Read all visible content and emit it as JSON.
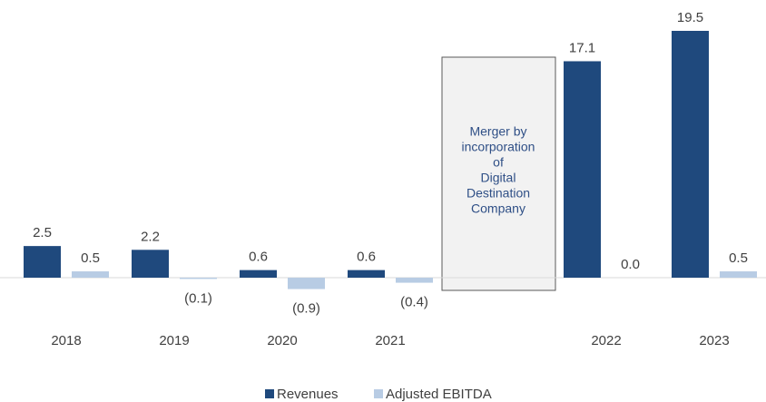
{
  "chart_data": {
    "type": "bar",
    "categories": [
      "2018",
      "2019",
      "2020",
      "2021",
      null,
      "2022",
      "2023"
    ],
    "series": [
      {
        "name": "Revenues",
        "color": "#1f497d",
        "values": [
          2.5,
          2.2,
          0.6,
          0.6,
          null,
          17.1,
          19.5
        ],
        "value_labels": [
          "2.5",
          "2.2",
          "0.6",
          "0.6",
          null,
          "17.1",
          "19.5"
        ]
      },
      {
        "name": "Adjusted EBITDA",
        "color": "#b8cce4",
        "values": [
          0.5,
          -0.1,
          -0.9,
          -0.4,
          null,
          0,
          0.5
        ],
        "value_labels": [
          "0.5",
          "(0.1)",
          "(0.9)",
          "(0.4)",
          null,
          "0.0",
          "0.5"
        ]
      }
    ],
    "annotation": [
      "Merger by",
      "incorporation",
      "of",
      "Digital",
      "Destination",
      "Company"
    ],
    "legend": "bottom"
  }
}
